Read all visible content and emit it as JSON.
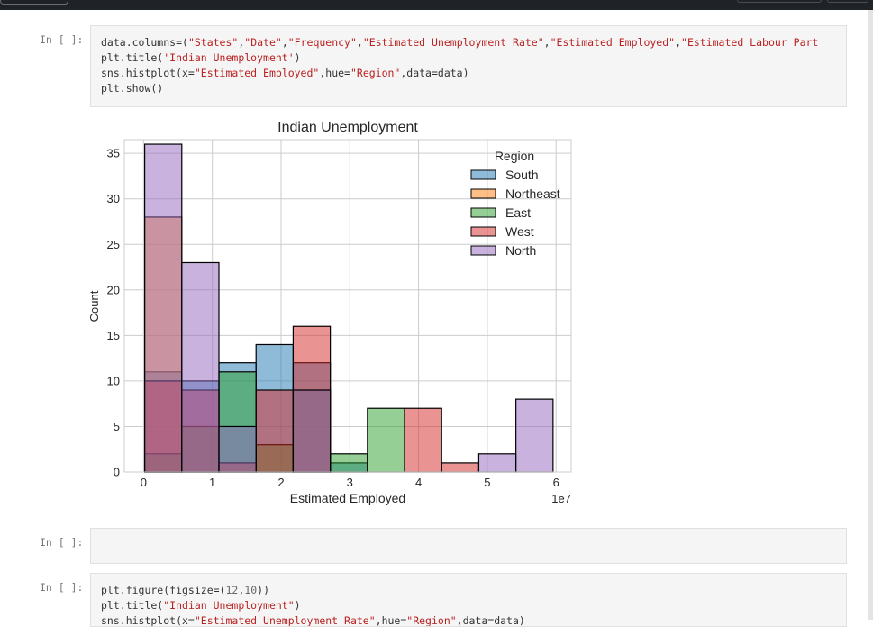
{
  "cells": [
    {
      "prompt": "In [ ]:",
      "lines": [
        [
          {
            "t": "data.columns=("
          },
          {
            "t": "\"States\"",
            "c": "str"
          },
          {
            "t": ","
          },
          {
            "t": "\"Date\"",
            "c": "str"
          },
          {
            "t": ","
          },
          {
            "t": "\"Frequency\"",
            "c": "str"
          },
          {
            "t": ","
          },
          {
            "t": "\"Estimated Unemployment Rate\"",
            "c": "str"
          },
          {
            "t": ","
          },
          {
            "t": "\"Estimated Employed\"",
            "c": "str"
          },
          {
            "t": ","
          },
          {
            "t": "\"Estimated Labour Part",
            "c": "str"
          }
        ],
        [
          {
            "t": "plt.title("
          },
          {
            "t": "'Indian Unemployment'",
            "c": "str"
          },
          {
            "t": ")"
          }
        ],
        [
          {
            "t": "sns.histplot(x="
          },
          {
            "t": "\"Estimated Employed\"",
            "c": "str"
          },
          {
            "t": ",hue="
          },
          {
            "t": "\"Region\"",
            "c": "str"
          },
          {
            "t": ",data=data)"
          }
        ],
        [
          {
            "t": "plt.show()"
          }
        ]
      ]
    },
    {
      "prompt": "In [ ]:",
      "lines": []
    },
    {
      "prompt": "In [ ]:",
      "lines": [
        [
          {
            "t": "plt.figure(figsize=("
          },
          {
            "t": "12",
            "c": "num"
          },
          {
            "t": ","
          },
          {
            "t": "10",
            "c": "num"
          },
          {
            "t": "))"
          }
        ],
        [
          {
            "t": "plt.title("
          },
          {
            "t": "\"Indian Unemployment\"",
            "c": "str"
          },
          {
            "t": ")"
          }
        ],
        [
          {
            "t": "sns.histplot(x="
          },
          {
            "t": "\"Estimated Unemployment Rate\"",
            "c": "str"
          },
          {
            "t": ",hue="
          },
          {
            "t": "\"Region\"",
            "c": "str"
          },
          {
            "t": ",data=data)"
          }
        ]
      ]
    }
  ],
  "chart_data": {
    "type": "bar",
    "subtype": "stacked-overlapping-histogram",
    "title": "Indian Unemployment",
    "xlabel": "Estimated Employed",
    "ylabel": "Count",
    "x_offset_label": "1e7",
    "xlim": [
      -0.28,
      6.22
    ],
    "ylim": [
      0,
      36.5
    ],
    "xticks": [
      0,
      1,
      2,
      3,
      4,
      5,
      6
    ],
    "yticks": [
      0,
      5,
      10,
      15,
      20,
      25,
      30,
      35
    ],
    "bin_edges": [
      0.016,
      0.556,
      1.096,
      1.636,
      2.176,
      2.716,
      3.256,
      3.796,
      4.336,
      4.876,
      5.416,
      5.956
    ],
    "grid": true,
    "legend": {
      "title": "Region",
      "placement": "top-right"
    },
    "series": [
      {
        "name": "South",
        "color": "#1f77b4",
        "values": [
          11,
          10,
          12,
          14,
          12,
          1,
          0,
          0,
          0,
          0,
          0
        ]
      },
      {
        "name": "Northeast",
        "color": "#ff7f0e",
        "values": [
          28,
          0,
          0,
          0,
          0,
          0,
          0,
          0,
          0,
          0,
          0
        ]
      },
      {
        "name": "East",
        "color": "#2ca02c",
        "values": [
          2,
          5,
          11,
          3,
          9,
          2,
          7,
          0,
          0,
          0,
          0
        ]
      },
      {
        "name": "West",
        "color": "#d62728",
        "values": [
          10,
          9,
          1,
          9,
          16,
          0,
          0,
          7,
          1,
          0,
          0
        ]
      },
      {
        "name": "North",
        "color": "#9467bd",
        "values": [
          36,
          23,
          5,
          0,
          9,
          0,
          0,
          0,
          0,
          2,
          8
        ]
      }
    ]
  }
}
